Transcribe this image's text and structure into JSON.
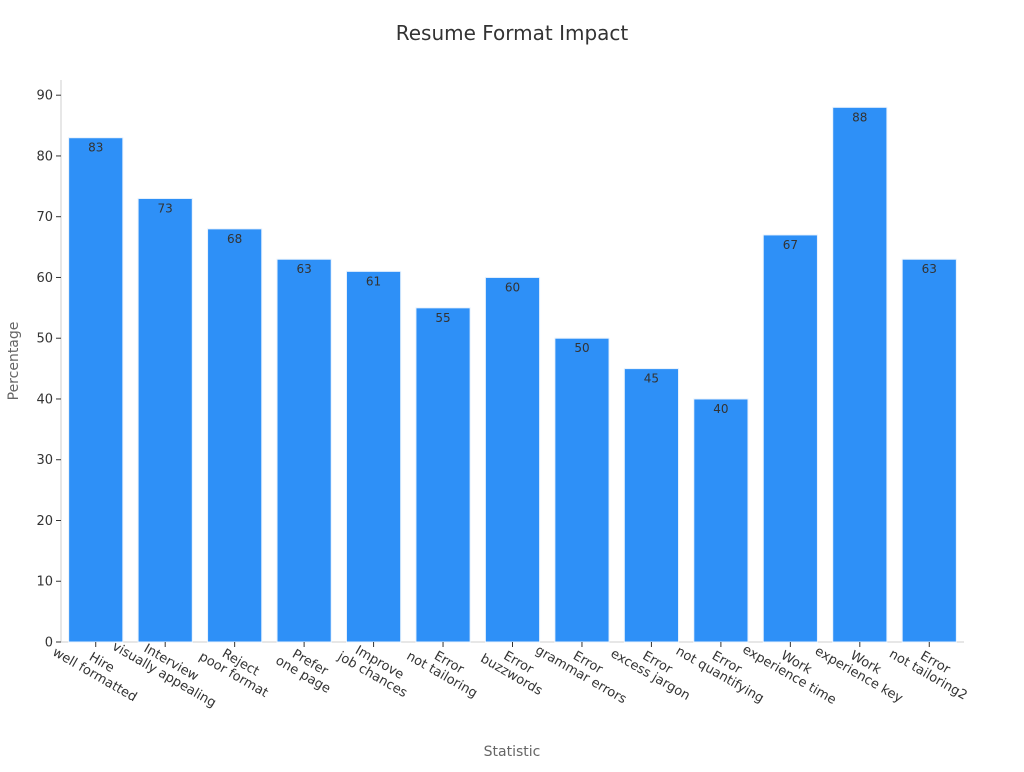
{
  "chart_data": {
    "type": "bar",
    "title": "Resume Format Impact",
    "xlabel": "Statistic",
    "ylabel": "Percentage",
    "categories": [
      [
        "Hire",
        "well formatted"
      ],
      [
        "Interview",
        "visually appealing"
      ],
      [
        "Reject",
        "poor format"
      ],
      [
        "Prefer",
        "one page"
      ],
      [
        "Improve",
        "job chances"
      ],
      [
        "Error",
        "not tailoring"
      ],
      [
        "Error",
        "buzzwords"
      ],
      [
        "Error",
        "grammar errors"
      ],
      [
        "Error",
        "excess jargon"
      ],
      [
        "Error",
        "not quantifying"
      ],
      [
        "Work",
        "experience time"
      ],
      [
        "Work",
        "experience key"
      ],
      [
        "Error",
        "not tailoring2"
      ]
    ],
    "values": [
      83,
      73,
      68,
      63,
      61,
      55,
      60,
      50,
      45,
      40,
      67,
      88,
      63
    ],
    "data_labels": [
      "83",
      "73",
      "68",
      "63",
      "61",
      "55",
      "60",
      "50",
      "45",
      "40",
      "67",
      "88",
      "63"
    ],
    "yticks": [
      "0",
      "10",
      "20",
      "30",
      "40",
      "50",
      "60",
      "70",
      "80",
      "90"
    ],
    "ylim": [
      0,
      92.5
    ],
    "grid": false,
    "legend": "none",
    "colors": {
      "bar": "#2E90F7",
      "bar_edge": "#E8F2FD",
      "axis": "#CFCFCF",
      "text": "#333333",
      "axis_title": "#666666"
    }
  }
}
